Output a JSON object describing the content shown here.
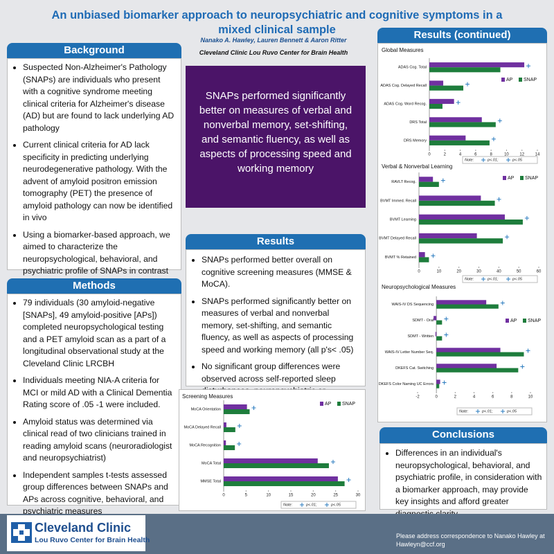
{
  "header": {
    "title": "An unbiased biomarker approach to neuropsychiatric and cognitive symptoms in a mixed clinical sample",
    "authors": "Nanako A. Hawley, Lauren Bennett & Aaron Ritter",
    "affiliation": "Cleveland Clinic Lou Ruvo Center for Brain Health"
  },
  "background": {
    "heading": "Background",
    "bullets": [
      "Suspected Non-Alzheimer's Pathology (SNAPs) are individuals who present with a cognitive syndrome meeting clinical criteria for Alzheimer's disease (AD) but are found to lack underlying AD pathology",
      "Current clinical criteria for AD lack specificity in predicting underlying neurodegenerative pathology. With the advent of amyloid positron emission tomography (PET) the presence of amyloid pathology can now be identified in vivo",
      "Using a biomarker-based approach, we aimed to characterize the neuropsychological, behavioral, and psychiatric profile of SNAPs in contrast to those with AD pathology (APs)"
    ]
  },
  "methods": {
    "heading": "Methods",
    "bullets": [
      "79 individuals (30 amyloid-negative [SNAPs], 49 amyloid-positive [APs]) completed neuropsychological testing and a PET amyloid scan as a part of a longitudinal observational study at the Cleveland Clinic LRCBH",
      "Individuals meeting NIA-A criteria for MCI or mild AD with a Clinical Dementia Rating score of .05 -1 were included.",
      "Amyloid status was determined via clinical read of two clinicians trained in reading amyloid scans (neuroradiologist and neuropsychiatrist)",
      "Independent samples t-tests assessed group differences between SNAPs and APs across cognitive, behavioral, and psychiatric measures"
    ]
  },
  "highlight": "SNAPs performed significantly better on measures of verbal and nonverbal memory, set-shifting, and semantic fluency, as well as aspects of processing speed and working memory",
  "results": {
    "heading": "Results",
    "bullets": [
      "SNAPs performed better overall on cognitive screening measures (MMSE & MoCA).",
      "SNAPs performed significantly better on measures of verbal and nonverbal memory, set-shifting, and semantic fluency, as well as aspects of processing speed and working memory (all p's< .05)",
      "No significant group differences were observed across self-reported sleep disturbances, neuropsychiatric or functional measures"
    ]
  },
  "results_continued": {
    "heading": "Results (continued)"
  },
  "conclusions": {
    "heading": "Conclusions",
    "bullets": [
      "Differences in an individual's neuropsychological, behavioral, and psychiatric profile, in consideration with a biomarker approach, may provide key insights and afford greater diagnostic clarity"
    ]
  },
  "charts": [
    {
      "type": "bar",
      "title": "Global Measures",
      "categories": [
        "ADAS Cog. Total",
        "ADAS Cog. Delayed Recall",
        "ADAS Cog. Word Recog.",
        "DRS Total",
        "DRS Memory"
      ],
      "series": [
        {
          "name": "AP",
          "color": "#7030a0",
          "values": [
            12.3,
            1.8,
            3.2,
            6.8,
            4.7
          ]
        },
        {
          "name": "SNAP",
          "color": "#1e7d3c",
          "values": [
            9.2,
            4.4,
            1.7,
            8.6,
            7.8
          ]
        }
      ],
      "xlim": [
        0,
        14
      ],
      "xticks": [
        0,
        2,
        4,
        6,
        8,
        10,
        12,
        14
      ],
      "note": [
        "Note:",
        "p<.01;",
        "p<.05"
      ]
    },
    {
      "type": "bar",
      "title": "Verbal & Nonverbal Learning",
      "categories": [
        "RAVLT Recog.",
        "BVMT Immed. Recall",
        "BVMT Learning",
        "BVMT Delayed Recall",
        "BVMT % Retained"
      ],
      "series": [
        {
          "name": "AP",
          "color": "#7030a0",
          "values": [
            7,
            31,
            43,
            29,
            3
          ]
        },
        {
          "name": "SNAP",
          "color": "#1e7d3c",
          "values": [
            10,
            38,
            52,
            42,
            5
          ]
        }
      ],
      "xlim": [
        0,
        60
      ],
      "xticks": [
        0,
        10,
        20,
        30,
        40,
        50,
        60
      ],
      "note": [
        "Note:",
        "p<.01;",
        "p<.05"
      ]
    },
    {
      "type": "bar",
      "title": "Neuropsychological Measures",
      "categories": [
        "WAIS-IV DS Sequencing",
        "SDMT - Oral",
        "SDMT - Written",
        "WAIS-IV Letter Number Seq.",
        "DKEFS Cat. Switching",
        "DKEFS Color Naming UC Errors"
      ],
      "series": [
        {
          "name": "AP",
          "color": "#7030a0",
          "values": [
            5.3,
            -0.3,
            -0.1,
            6.8,
            6.4,
            0.4
          ]
        },
        {
          "name": "SNAP",
          "color": "#1e7d3c",
          "values": [
            6.6,
            0.6,
            0.6,
            9.3,
            8.7,
            0.3
          ]
        }
      ],
      "xlim": [
        -2,
        10
      ],
      "xticks": [
        -2,
        0,
        2,
        4,
        6,
        8,
        10
      ],
      "note": [
        "Note:",
        "p<.01;",
        "p<.05"
      ]
    },
    {
      "type": "bar",
      "title": "Screening Measures",
      "categories": [
        "MoCA Orientation",
        "MoCA Delayed Recall",
        "MoCA Recognition",
        "MoCA Total",
        "MMSE Total"
      ],
      "series": [
        {
          "name": "AP",
          "color": "#7030a0",
          "values": [
            5.2,
            0.6,
            0.5,
            21,
            25.5
          ]
        },
        {
          "name": "SNAP",
          "color": "#1e7d3c",
          "values": [
            5.8,
            2.6,
            2.5,
            23.5,
            27
          ]
        }
      ],
      "xlim": [
        0,
        30
      ],
      "xticks": [
        0,
        5,
        10,
        15,
        20,
        25,
        30
      ],
      "note": [
        "Note:",
        "p<.01;",
        "p<.05"
      ]
    }
  ],
  "footer": {
    "logo_name": "Cleveland Clinic",
    "logo_sub": "Lou Ruvo Center for Brain Health",
    "contact": "Please address correspondence to Nanako Hawley at Hawleyn@ccf.org"
  }
}
